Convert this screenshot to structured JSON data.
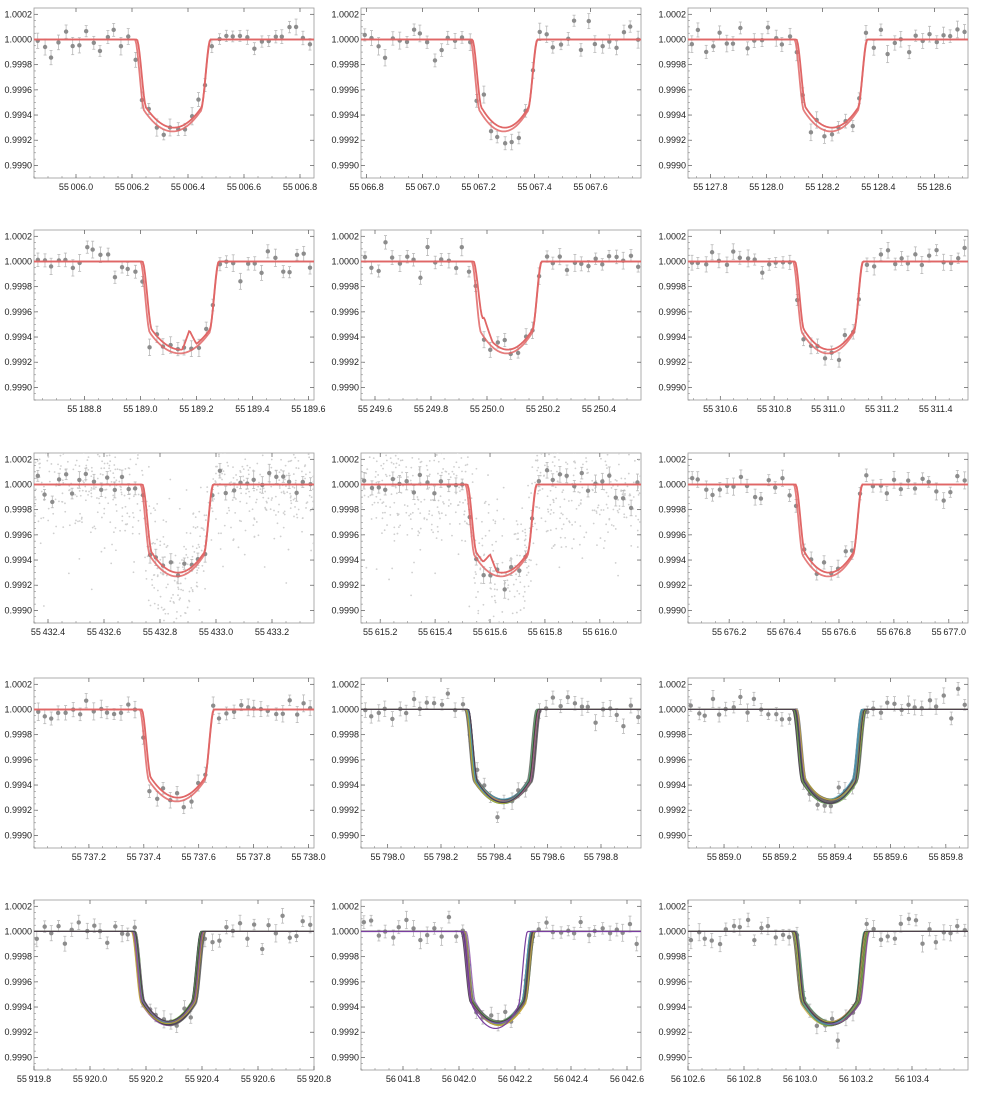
{
  "colors": {
    "model_line": "#e06666",
    "data_point": "#8c8c8c",
    "error_bar": "#b8b8b8",
    "raw_point": "#cfcfcf",
    "frame": "#999999",
    "ensemble": [
      "#5e5e5e",
      "#6f6f6f",
      "#4aa0c0",
      "#6fae4a",
      "#c7a83a",
      "#8e4aa8",
      "#3c3c3c"
    ]
  },
  "chart_data": [
    {
      "type": "scatter",
      "transit_center": 55006.345,
      "half_width": 0.135,
      "xlim": [
        55005.85,
        55006.85
      ],
      "xticks": [
        "55006.0",
        "55006.2",
        "55006.4",
        "55006.6",
        "55006.8"
      ],
      "xtick_values": [
        55006.0,
        55006.2,
        55006.4,
        55006.6,
        55006.8
      ],
      "yticks": [
        "1.0002",
        "1.0000",
        "0.9998",
        "0.9996",
        "0.9994",
        "0.9992",
        "0.9990"
      ],
      "ylim": [
        0.9989,
        1.00025
      ],
      "model_style": "red",
      "bump": null,
      "raw_scatter": false,
      "show_yticks": true,
      "depth": 0.99927
    },
    {
      "type": "scatter",
      "transit_center": 55067.29,
      "half_width": 0.12,
      "xlim": [
        55066.78,
        55067.78
      ],
      "xticks": [
        "55066.8",
        "55067.0",
        "55067.2",
        "55067.4",
        "55067.6"
      ],
      "xtick_values": [
        55066.8,
        55067.0,
        55067.2,
        55067.4,
        55067.6
      ],
      "yticks": [
        "1.0002",
        "1.0000",
        "0.9998",
        "0.9996",
        "0.9994",
        "0.9992",
        "0.9990"
      ],
      "ylim": [
        0.9989,
        1.00025
      ],
      "model_style": "red",
      "bump": null,
      "raw_scatter": false,
      "show_yticks": true,
      "depth": 0.99927
    },
    {
      "type": "scatter",
      "transit_center": 55128.23,
      "half_width": 0.13,
      "xlim": [
        55127.72,
        55128.72
      ],
      "xticks": [
        "55127.8",
        "55128.0",
        "55128.2",
        "55128.4",
        "55128.6"
      ],
      "xtick_values": [
        55127.8,
        55128.0,
        55128.2,
        55128.4,
        55128.6
      ],
      "yticks": [
        "1.0002",
        "1.0000",
        "0.9998",
        "0.9996",
        "0.9994",
        "0.9992",
        "0.9990"
      ],
      "ylim": [
        0.9989,
        1.00025
      ],
      "model_style": "red",
      "bump": null,
      "raw_scatter": false,
      "show_yticks": true,
      "depth": 0.99927
    },
    {
      "type": "scatter",
      "transit_center": 55189.14,
      "half_width": 0.14,
      "xlim": [
        55188.62,
        55189.62
      ],
      "xticks": [
        "55188.8",
        "55189.0",
        "55189.2",
        "55189.4",
        "55189.6"
      ],
      "xtick_values": [
        55188.8,
        55189.0,
        55189.2,
        55189.4,
        55189.6
      ],
      "yticks": [
        "1.0002",
        "1.0000",
        "0.9998",
        "0.9996",
        "0.9994",
        "0.9992",
        "0.9990"
      ],
      "ylim": [
        0.9989,
        1.00025
      ],
      "model_style": "red",
      "bump": {
        "x": 55189.175,
        "height": 0.00014,
        "width": 0.025
      },
      "raw_scatter": false,
      "show_yticks": true,
      "depth": 0.99927
    },
    {
      "type": "scatter",
      "transit_center": 55250.07,
      "half_width": 0.125,
      "xlim": [
        55249.55,
        55250.55
      ],
      "xticks": [
        "55249.6",
        "55249.8",
        "55250.0",
        "55250.2",
        "55250.4"
      ],
      "xtick_values": [
        55249.6,
        55249.8,
        55250.0,
        55250.2,
        55250.4
      ],
      "yticks": [
        "1.0002",
        "1.0000",
        "0.9998",
        "0.9996",
        "0.9994",
        "0.9992",
        "0.9990"
      ],
      "ylim": [
        0.9989,
        1.00025
      ],
      "model_style": "red",
      "bump": {
        "x": 55249.99,
        "height": 0.00011,
        "width": 0.03
      },
      "raw_scatter": false,
      "show_yticks": true,
      "depth": 0.99927
    },
    {
      "type": "scatter",
      "transit_center": 55311.0,
      "half_width": 0.13,
      "xlim": [
        55310.48,
        55311.52
      ],
      "xticks": [
        "55310.6",
        "55310.8",
        "55311.0",
        "55311.2",
        "55311.4"
      ],
      "xtick_values": [
        55310.6,
        55310.8,
        55311.0,
        55311.2,
        55311.4
      ],
      "yticks": [
        "1.0002",
        "1.0000",
        "0.9998",
        "0.9996",
        "0.9994",
        "0.9992",
        "0.9990"
      ],
      "ylim": [
        0.9989,
        1.00025
      ],
      "model_style": "red",
      "bump": null,
      "raw_scatter": false,
      "show_yticks": true,
      "depth": 0.99927
    },
    {
      "type": "scatter",
      "transit_center": 55432.86,
      "half_width": 0.13,
      "xlim": [
        55432.35,
        55433.35
      ],
      "xticks": [
        "55432.4",
        "55432.6",
        "55432.8",
        "55433.0",
        "55433.2"
      ],
      "xtick_values": [
        55432.4,
        55432.6,
        55432.8,
        55433.0,
        55433.2
      ],
      "yticks": [
        "1.0002",
        "1.0000",
        "0.9998",
        "0.9996",
        "0.9994",
        "0.9992",
        "0.9990"
      ],
      "ylim": [
        0.9989,
        1.00025
      ],
      "model_style": "red",
      "bump": null,
      "raw_scatter": true,
      "show_yticks": true,
      "depth": 0.99927
    },
    {
      "type": "scatter",
      "transit_center": 55615.64,
      "half_width": 0.13,
      "xlim": [
        55615.13,
        55616.15
      ],
      "xticks": [
        "55615.2",
        "55615.4",
        "55615.6",
        "55615.8",
        "55616.0"
      ],
      "xtick_values": [
        55615.2,
        55615.4,
        55615.6,
        55615.8,
        55616.0
      ],
      "yticks": [
        "1.0002",
        "1.0000",
        "0.9998",
        "0.9996",
        "0.9994",
        "0.9992",
        "0.9990"
      ],
      "ylim": [
        0.9989,
        1.00025
      ],
      "model_style": "red",
      "bump": {
        "x": 55615.6,
        "height": 0.00011,
        "width": 0.025
      },
      "raw_scatter": true,
      "show_yticks": true,
      "depth": 0.99927
    },
    {
      "type": "scatter",
      "transit_center": 55676.56,
      "half_width": 0.125,
      "xlim": [
        55676.05,
        55677.07
      ],
      "xticks": [
        "55676.2",
        "55676.4",
        "55676.6",
        "55676.8",
        "55677.0"
      ],
      "xtick_values": [
        55676.2,
        55676.4,
        55676.6,
        55676.8,
        55677.0
      ],
      "yticks": [
        "1.0002",
        "1.0000",
        "0.9998",
        "0.9996",
        "0.9994",
        "0.9992",
        "0.9990"
      ],
      "ylim": [
        0.9989,
        1.00025
      ],
      "model_style": "red",
      "bump": null,
      "raw_scatter": false,
      "show_yticks": true,
      "depth": 0.99927
    },
    {
      "type": "scatter",
      "transit_center": 55737.52,
      "half_width": 0.135,
      "xlim": [
        55737.0,
        55738.02
      ],
      "xticks": [
        "55737.2",
        "55737.4",
        "55737.6",
        "55737.8",
        "55738.0"
      ],
      "xtick_values": [
        55737.2,
        55737.4,
        55737.6,
        55737.8,
        55738.0
      ],
      "yticks": [
        "1.0002",
        "1.0000",
        "0.9998",
        "0.9996",
        "0.9994",
        "0.9992",
        "0.9990"
      ],
      "ylim": [
        0.9989,
        1.00025
      ],
      "model_style": "red",
      "bump": null,
      "raw_scatter": false,
      "show_yticks": true,
      "depth": 0.99927
    },
    {
      "type": "scatter",
      "transit_center": 55798.43,
      "half_width": 0.135,
      "xlim": [
        55797.9,
        55798.95
      ],
      "xticks": [
        "55798.0",
        "55798.2",
        "55798.4",
        "55798.6",
        "55798.8"
      ],
      "xtick_values": [
        55798.0,
        55798.2,
        55798.4,
        55798.6,
        55798.8
      ],
      "yticks": [
        "1.0002",
        "1.0000",
        "0.9998",
        "0.9996",
        "0.9994",
        "0.9992",
        "0.9990"
      ],
      "ylim": [
        0.9989,
        1.00025
      ],
      "model_style": "ensemble",
      "bump": null,
      "raw_scatter": false,
      "show_yticks": true,
      "depth": 0.99927
    },
    {
      "type": "scatter",
      "transit_center": 55859.38,
      "half_width": 0.125,
      "xlim": [
        55858.87,
        55859.88
      ],
      "xticks": [
        "55859.0",
        "55859.2",
        "55859.4",
        "55859.6",
        "55859.8"
      ],
      "xtick_values": [
        55859.0,
        55859.2,
        55859.4,
        55859.6,
        55859.8
      ],
      "yticks": [
        "1.0002",
        "1.0000",
        "0.9998",
        "0.9996",
        "0.9994",
        "0.9992",
        "0.9990"
      ],
      "ylim": [
        0.9989,
        1.00025
      ],
      "model_style": "ensemble",
      "bump": null,
      "raw_scatter": false,
      "show_yticks": true,
      "depth": 0.99927
    },
    {
      "type": "scatter",
      "transit_center": 55920.28,
      "half_width": 0.125,
      "xlim": [
        55919.8,
        55920.8
      ],
      "xticks": [
        "55919.8",
        "55920.0",
        "55920.2",
        "55920.4",
        "55920.6",
        "55920.8"
      ],
      "xtick_values": [
        55919.8,
        55920.0,
        55920.2,
        55920.4,
        55920.6,
        55920.8
      ],
      "yticks": [
        "1.0002",
        "1.0000",
        "0.9998",
        "0.9996",
        "0.9994",
        "0.9992",
        "0.9990"
      ],
      "ylim": [
        0.9989,
        1.00025
      ],
      "model_style": "ensemble",
      "bump": null,
      "raw_scatter": false,
      "show_yticks": true,
      "depth": 0.99927
    },
    {
      "type": "scatter",
      "transit_center": 56042.14,
      "half_width": 0.125,
      "xlim": [
        56041.65,
        56042.65
      ],
      "xticks": [
        "56041.8",
        "56042.0",
        "56042.2",
        "56042.4",
        "56042.6"
      ],
      "xtick_values": [
        56041.8,
        56042.0,
        56042.2,
        56042.4,
        56042.6
      ],
      "yticks": [
        "1.0002",
        "1.0000",
        "0.9998",
        "0.9996",
        "0.9994",
        "0.9992",
        "0.9990"
      ],
      "ylim": [
        0.9989,
        1.00025
      ],
      "model_style": "ensemble",
      "bump": null,
      "raw_scatter": false,
      "show_yticks": true,
      "depth": 0.99927
    },
    {
      "type": "scatter",
      "transit_center": 56103.11,
      "half_width": 0.13,
      "xlim": [
        56102.6,
        56103.6
      ],
      "xticks": [
        "56102.6",
        "56102.8",
        "56103.0",
        "56103.2",
        "56103.4"
      ],
      "xtick_values": [
        56102.6,
        56102.8,
        56103.0,
        56103.2,
        56103.4
      ],
      "yticks": [
        "1.0002",
        "1.0000",
        "0.9998",
        "0.9996",
        "0.9994",
        "0.9992",
        "0.9990"
      ],
      "ylim": [
        0.9989,
        1.00025
      ],
      "model_style": "ensemble",
      "bump": null,
      "raw_scatter": false,
      "show_yticks": true,
      "depth": 0.99927
    }
  ]
}
